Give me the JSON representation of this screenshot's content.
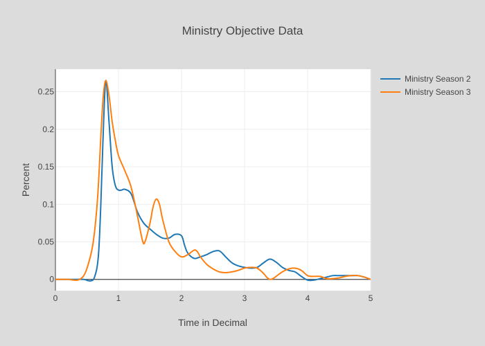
{
  "chart_data": {
    "type": "line",
    "title": "Ministry Objective Data",
    "xlabel": "Time in Decimal",
    "ylabel": "Percent",
    "xlim": [
      0,
      5
    ],
    "ylim": [
      -0.015,
      0.28
    ],
    "xticks": [
      0,
      1,
      2,
      3,
      4,
      5
    ],
    "xtick_labels": [
      "0",
      "1",
      "2",
      "3",
      "4",
      "5"
    ],
    "yticks": [
      0,
      0.05,
      0.1,
      0.15,
      0.2,
      0.25
    ],
    "ytick_labels": [
      "0",
      "0.05",
      "0.1",
      "0.15",
      "0.2",
      "0.25"
    ],
    "grid": true,
    "legend_position": "top-right",
    "colors": {
      "background": "#dcdcdc",
      "plot_background": "#ffffff",
      "grid": "#eeeeee",
      "zero_line": "#444444",
      "text": "#444444"
    },
    "series": [
      {
        "name": "Ministry Season 2",
        "color": "#1f77b4",
        "x": [
          0,
          0.3,
          0.45,
          0.55,
          0.62,
          0.68,
          0.72,
          0.76,
          0.8,
          0.85,
          0.9,
          0.95,
          1.0,
          1.05,
          1.1,
          1.2,
          1.3,
          1.4,
          1.5,
          1.6,
          1.7,
          1.8,
          1.9,
          2.0,
          2.05,
          2.1,
          2.2,
          2.3,
          2.4,
          2.5,
          2.6,
          2.7,
          2.8,
          2.9,
          3.0,
          3.1,
          3.2,
          3.3,
          3.4,
          3.5,
          3.6,
          3.7,
          3.8,
          3.9,
          4.0,
          4.1,
          4.2,
          4.3,
          4.4,
          4.5,
          4.6,
          4.7,
          4.8,
          4.9,
          5.0
        ],
        "y": [
          0,
          0,
          0,
          -0.002,
          0.003,
          0.03,
          0.1,
          0.2,
          0.265,
          0.21,
          0.15,
          0.125,
          0.119,
          0.119,
          0.12,
          0.114,
          0.09,
          0.075,
          0.067,
          0.06,
          0.055,
          0.055,
          0.06,
          0.058,
          0.045,
          0.035,
          0.028,
          0.03,
          0.033,
          0.037,
          0.038,
          0.03,
          0.022,
          0.018,
          0.016,
          0.015,
          0.016,
          0.022,
          0.027,
          0.023,
          0.016,
          0.012,
          0.01,
          0.004,
          -0.001,
          -0.001,
          0.001,
          0.003,
          0.005,
          0.005,
          0.005,
          0.005,
          0.005,
          0.003,
          0
        ]
      },
      {
        "name": "Ministry Season 3",
        "color": "#ff7f0e",
        "x": [
          0,
          0.2,
          0.35,
          0.45,
          0.52,
          0.6,
          0.67,
          0.72,
          0.76,
          0.8,
          0.85,
          0.9,
          0.95,
          1.0,
          1.1,
          1.2,
          1.3,
          1.38,
          1.42,
          1.5,
          1.55,
          1.6,
          1.65,
          1.7,
          1.8,
          1.9,
          2.0,
          2.1,
          2.2,
          2.25,
          2.3,
          2.4,
          2.5,
          2.6,
          2.7,
          2.8,
          2.9,
          3.0,
          3.1,
          3.2,
          3.3,
          3.35,
          3.4,
          3.45,
          3.5,
          3.6,
          3.7,
          3.8,
          3.9,
          4.0,
          4.1,
          4.2,
          4.3,
          4.4,
          4.5,
          4.6,
          4.7,
          4.8,
          4.9,
          5.0
        ],
        "y": [
          0,
          0,
          -0.001,
          0.005,
          0.02,
          0.05,
          0.11,
          0.19,
          0.245,
          0.265,
          0.245,
          0.21,
          0.185,
          0.165,
          0.145,
          0.123,
          0.085,
          0.052,
          0.05,
          0.075,
          0.097,
          0.107,
          0.1,
          0.08,
          0.05,
          0.037,
          0.03,
          0.033,
          0.039,
          0.037,
          0.03,
          0.02,
          0.014,
          0.01,
          0.009,
          0.01,
          0.012,
          0.015,
          0.016,
          0.015,
          0.008,
          0.003,
          0,
          0.001,
          0.004,
          0.01,
          0.014,
          0.015,
          0.012,
          0.005,
          0.004,
          0.004,
          0.001,
          0.001,
          0.002,
          0.004,
          0.005,
          0.005,
          0.003,
          0
        ]
      }
    ]
  }
}
